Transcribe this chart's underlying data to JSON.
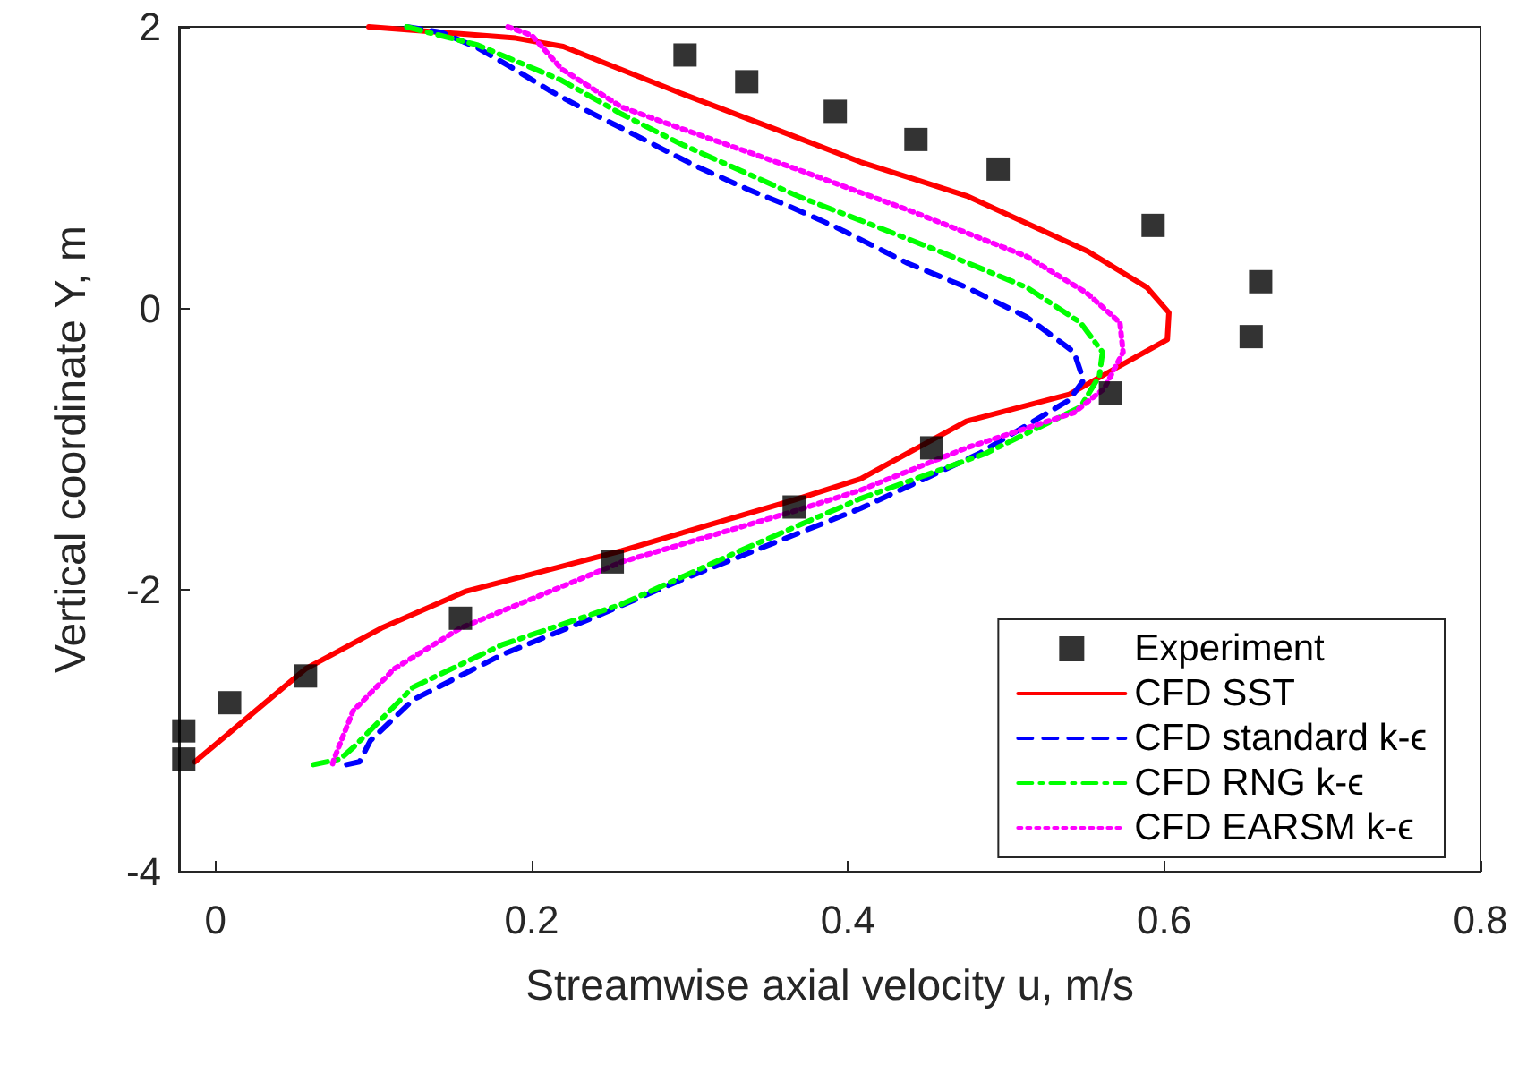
{
  "chart_data": {
    "type": "line",
    "xlabel": "Streamwise axial velocity u, m/s",
    "ylabel": "Vertical coordinate Y, m",
    "xlim": [
      -0.023,
      0.8
    ],
    "xticks": [
      0,
      0.2,
      0.4,
      0.6,
      0.8
    ],
    "ylim": [
      -4,
      2
    ],
    "yticks": [
      -4,
      -2,
      0,
      2
    ],
    "grid": false,
    "legend": "bottom right",
    "series": [
      {
        "name": "Experiment",
        "type": "scatter",
        "marker": "square",
        "color": "#000000",
        "x": [
          0.297,
          0.336,
          0.392,
          0.443,
          0.495,
          0.593,
          0.661,
          0.655,
          0.566,
          0.453,
          0.366,
          0.251,
          0.155,
          0.057,
          0.009,
          -0.02,
          -0.02
        ],
        "values": [
          1.8,
          1.61,
          1.4,
          1.2,
          0.99,
          0.59,
          0.19,
          -0.2,
          -0.6,
          -0.99,
          -1.41,
          -1.8,
          -2.2,
          -2.61,
          -2.8,
          -3.0,
          -3.2
        ]
      },
      {
        "name": "CFD SST",
        "line_style": "solid",
        "color": "#ff0000",
        "x": [
          0.097,
          0.19,
          0.22,
          0.294,
          0.362,
          0.408,
          0.475,
          0.551,
          0.589,
          0.603,
          0.602,
          0.57,
          0.54,
          0.475,
          0.408,
          0.366,
          0.257,
          0.158,
          0.105,
          0.057,
          -0.013
        ],
        "values": [
          2.0,
          1.92,
          1.86,
          1.53,
          1.24,
          1.04,
          0.8,
          0.41,
          0.15,
          -0.03,
          -0.22,
          -0.42,
          -0.61,
          -0.8,
          -1.21,
          -1.36,
          -1.72,
          -2.01,
          -2.27,
          -2.56,
          -3.22
        ]
      },
      {
        "name": "CFD standard k-ϵ",
        "line_style": "dashed",
        "color": "#0000ff",
        "x": [
          0.121,
          0.143,
          0.166,
          0.189,
          0.211,
          0.234,
          0.257,
          0.283,
          0.306,
          0.336,
          0.362,
          0.392,
          0.438,
          0.475,
          0.513,
          0.543,
          0.549,
          0.54,
          0.483,
          0.408,
          0.37,
          0.294,
          0.238,
          0.181,
          0.125,
          0.098,
          0.091,
          0.083
        ],
        "values": [
          2.0,
          1.96,
          1.85,
          1.7,
          1.55,
          1.41,
          1.28,
          1.13,
          1.0,
          0.85,
          0.73,
          0.58,
          0.32,
          0.15,
          -0.06,
          -0.31,
          -0.51,
          -0.65,
          -1.03,
          -1.42,
          -1.59,
          -1.93,
          -2.2,
          -2.46,
          -2.78,
          -3.07,
          -3.22,
          -3.24
        ]
      },
      {
        "name": "CFD RNG k-ϵ",
        "line_style": "dashdot",
        "color": "#00ff00",
        "x": [
          0.121,
          0.166,
          0.219,
          0.257,
          0.294,
          0.332,
          0.37,
          0.4,
          0.457,
          0.513,
          0.547,
          0.561,
          0.559,
          0.547,
          0.487,
          0.408,
          0.332,
          0.257,
          0.181,
          0.125,
          0.087,
          0.079,
          0.062
        ],
        "values": [
          2.0,
          1.87,
          1.62,
          1.38,
          1.17,
          0.98,
          0.79,
          0.66,
          0.41,
          0.15,
          -0.1,
          -0.31,
          -0.48,
          -0.7,
          -1.03,
          -1.35,
          -1.72,
          -2.1,
          -2.39,
          -2.69,
          -3.12,
          -3.2,
          -3.24
        ]
      },
      {
        "name": "CFD EARSM k-ϵ",
        "line_style": "dotted",
        "color": "#ff00ff",
        "x": [
          0.185,
          0.2,
          0.219,
          0.257,
          0.294,
          0.332,
          0.37,
          0.438,
          0.513,
          0.551,
          0.572,
          0.574,
          0.562,
          0.543,
          0.475,
          0.408,
          0.366,
          0.257,
          0.155,
          0.113,
          0.087,
          0.075,
          0.074
        ],
        "values": [
          2.0,
          1.94,
          1.7,
          1.43,
          1.28,
          1.13,
          0.98,
          0.7,
          0.37,
          0.11,
          -0.1,
          -0.31,
          -0.57,
          -0.74,
          -0.99,
          -1.29,
          -1.44,
          -1.8,
          -2.27,
          -2.56,
          -2.86,
          -3.2,
          -3.24
        ]
      }
    ]
  }
}
